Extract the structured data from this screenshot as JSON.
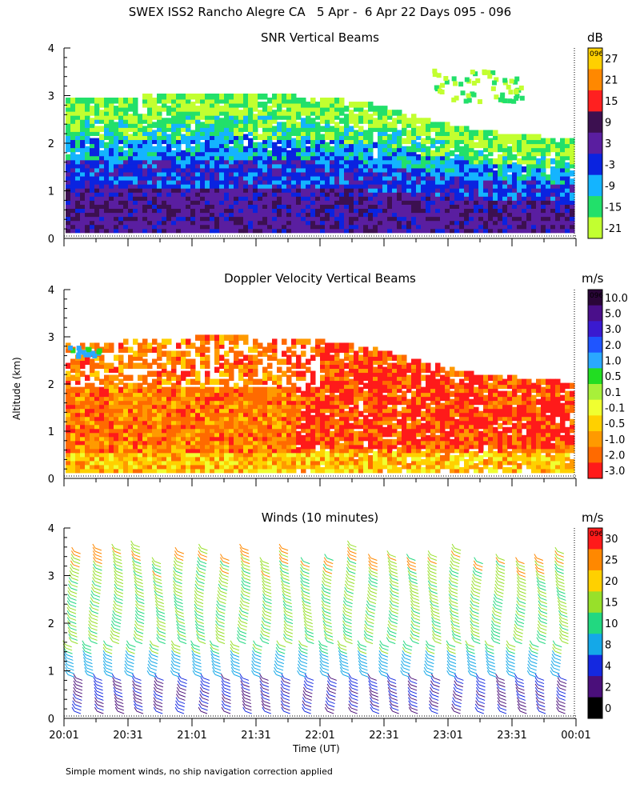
{
  "figure": {
    "title": "SWEX ISS2 Rancho Alegre CA   5 Apr -  6 Apr 22 Days 095 - 096",
    "ylabel": "Altitude (km)",
    "xlabel": "Time (UT)",
    "footnote": "Simple moment winds, no ship navigation correction applied",
    "day_tag": "096"
  },
  "chart_data": [
    {
      "type": "heatmap",
      "title": "SNR Vertical Beams",
      "colorbar_unit": "dB",
      "colorbar_ticks": [
        "27",
        "21",
        "15",
        "9",
        "3",
        "-3",
        "-9",
        "-15",
        "-21"
      ],
      "colorbar_colors": [
        "#ffd000",
        "#ff8800",
        "#ff2020",
        "#3c1050",
        "#5a1ea0",
        "#0a23e0",
        "#14b4ff",
        "#22e06a",
        "#c2ff30"
      ],
      "x_ticks": [
        "20:01",
        "20:31",
        "21:01",
        "21:31",
        "22:01",
        "22:31",
        "23:01",
        "23:31",
        "00:01"
      ],
      "y_ticks": [
        "0",
        "1",
        "2",
        "3",
        "4"
      ],
      "ylim": [
        0,
        4
      ],
      "signal_top_km": [
        2.85,
        2.9,
        2.95,
        3.0,
        2.95,
        2.9,
        2.75,
        2.45,
        2.2,
        2.1,
        2.0
      ],
      "signal_top_time": [
        "20:01",
        "20:25",
        "20:55",
        "21:25",
        "21:55",
        "22:10",
        "22:25",
        "22:45",
        "23:10",
        "23:40",
        "00:01"
      ]
    },
    {
      "type": "heatmap",
      "title": "Doppler Velocity Vertical Beams",
      "colorbar_unit": "m/s",
      "colorbar_ticks": [
        "10.0",
        "5.0",
        "3.0",
        "2.0",
        "1.0",
        "0.5",
        "0.1",
        "-0.1",
        "-0.5",
        "-1.0",
        "-2.0",
        "-3.0"
      ],
      "colorbar_colors": [
        "#2a0638",
        "#4a0f8a",
        "#3a1ad0",
        "#1f55ff",
        "#2aa8ff",
        "#22dd22",
        "#a8f03a",
        "#f0ff30",
        "#ffd000",
        "#ff9a00",
        "#ff6a00",
        "#ff1a1a"
      ],
      "x_ticks": [
        "20:01",
        "20:31",
        "21:01",
        "21:31",
        "22:01",
        "22:31",
        "23:01",
        "23:31",
        "00:01"
      ],
      "y_ticks": [
        "0",
        "1",
        "2",
        "3",
        "4"
      ],
      "ylim": [
        0,
        4
      ]
    },
    {
      "type": "scatter",
      "title": "Winds (10 minutes)",
      "colorbar_unit": "m/s",
      "colorbar_ticks": [
        "30",
        "25",
        "20",
        "15",
        "10",
        "8",
        "4",
        "2",
        "0"
      ],
      "colorbar_colors": [
        "#ff1a1a",
        "#ff8800",
        "#ffd000",
        "#98e02a",
        "#22d880",
        "#14a8e8",
        "#1428e0",
        "#4a0f7a",
        "#000000"
      ],
      "x_ticks": [
        "20:01",
        "20:31",
        "21:01",
        "21:31",
        "22:01",
        "22:31",
        "23:01",
        "23:31",
        "00:01"
      ],
      "y_ticks": [
        "0",
        "1",
        "2",
        "3",
        "4"
      ],
      "ylim": [
        0,
        4
      ],
      "profile_count": 24,
      "profile_interval_minutes": 10
    }
  ]
}
